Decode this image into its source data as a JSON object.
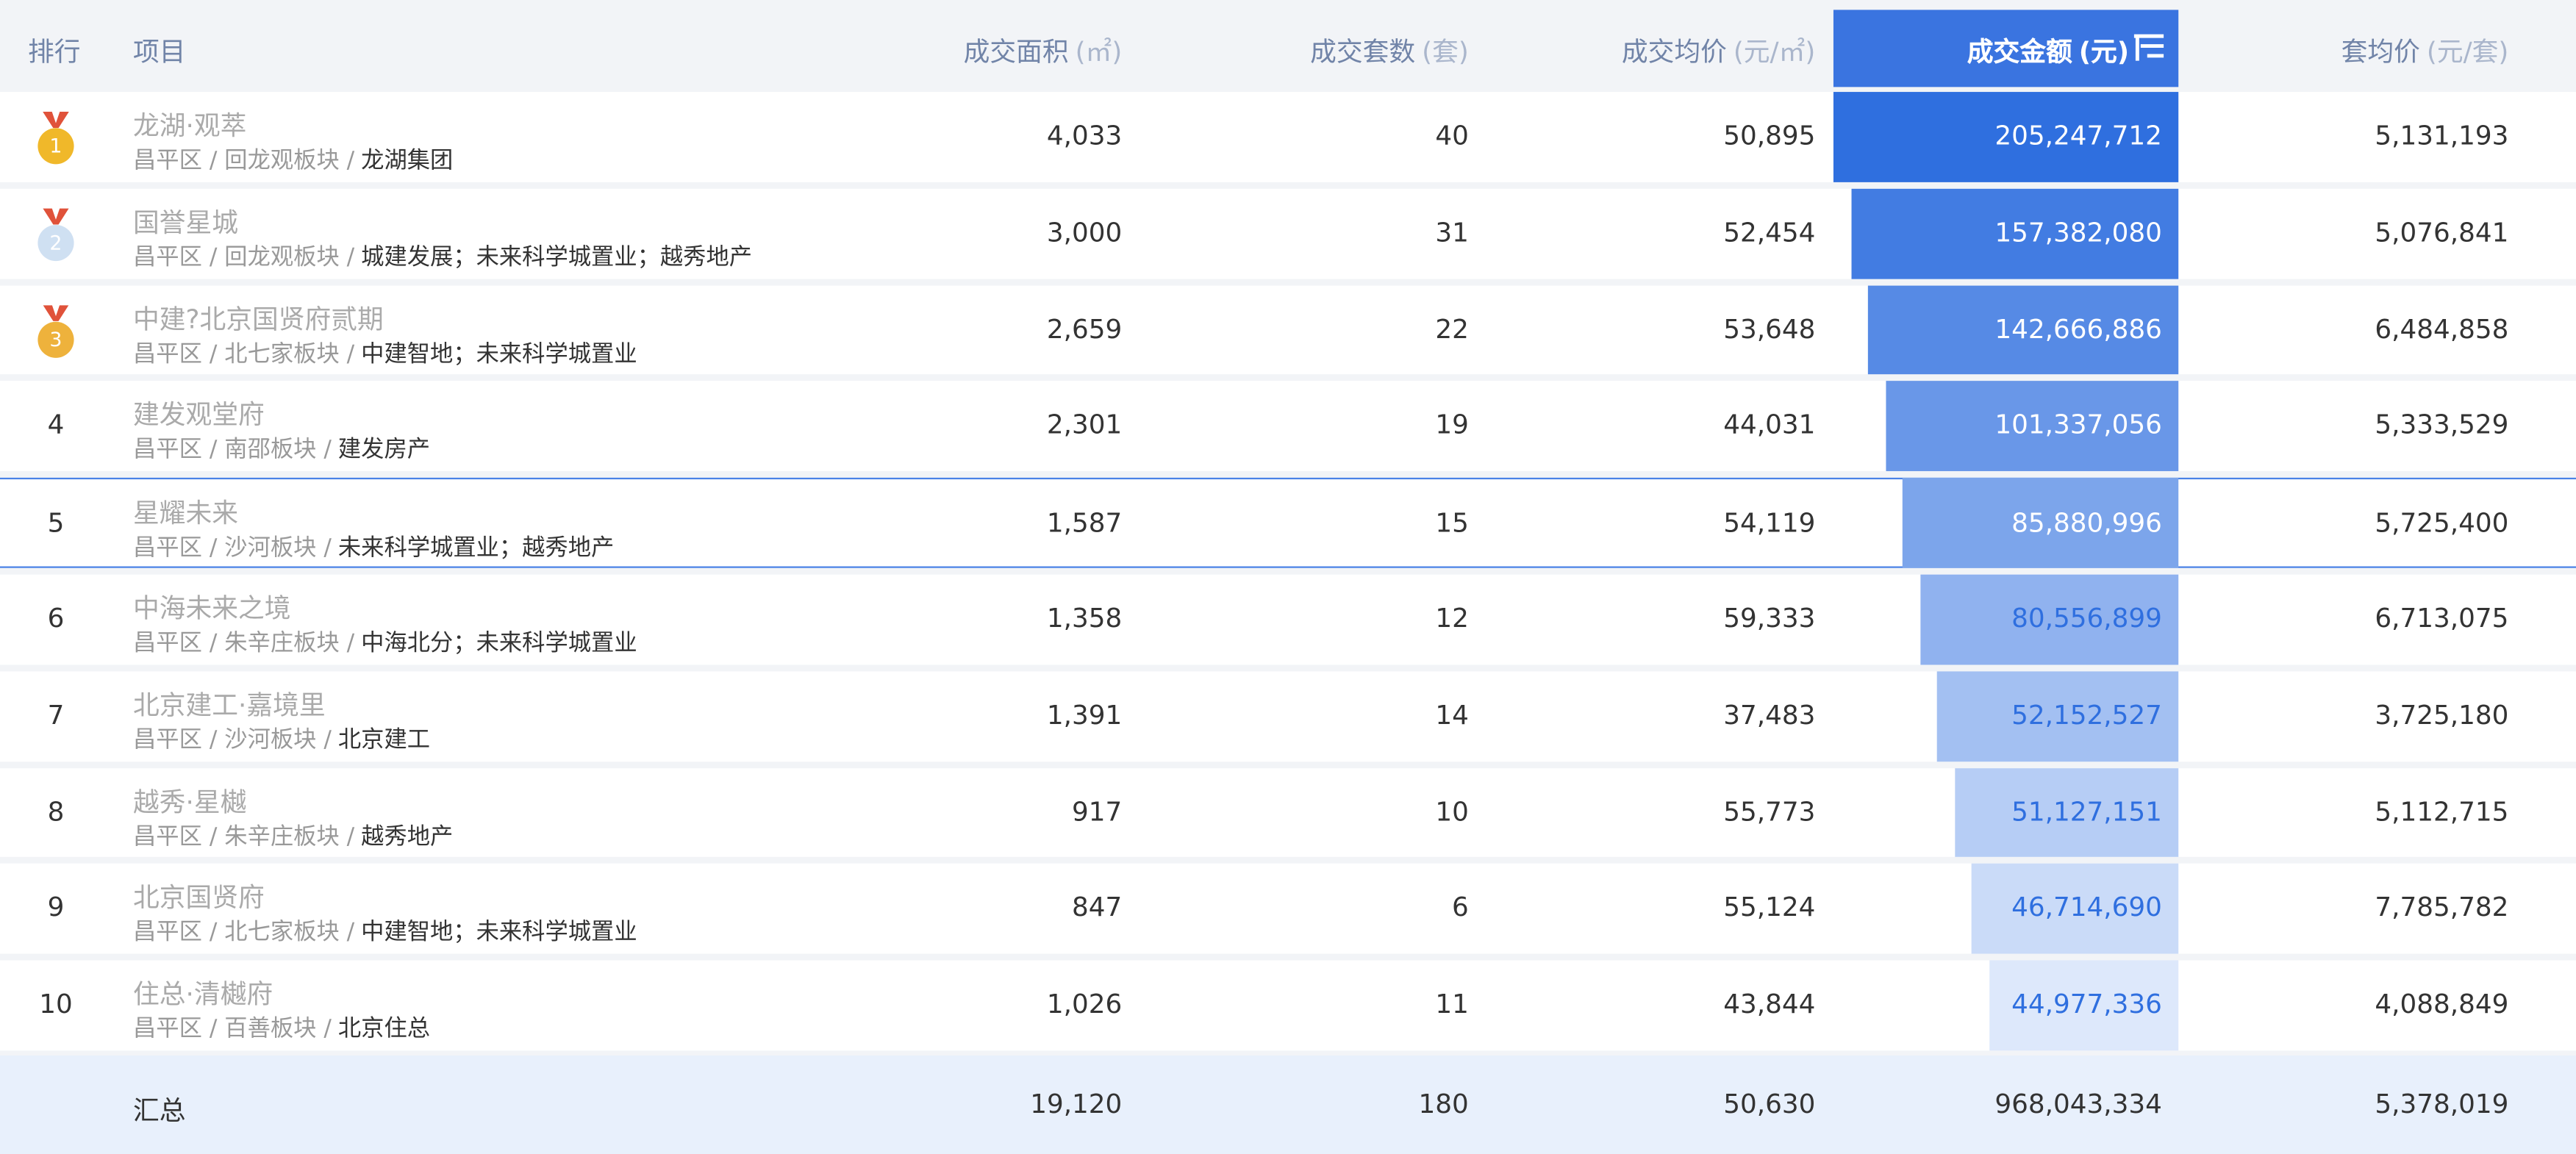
{
  "table": {
    "header": [
      {
        "label": "排行",
        "unit": null
      },
      {
        "label": "项目",
        "unit": null
      },
      {
        "label": "成交面积",
        "unit": "(㎡)"
      },
      {
        "label": "成交套数",
        "unit": "(套)"
      },
      {
        "label": "成交均价",
        "unit": "(元/㎡)"
      },
      {
        "label": "成交金额",
        "unit": "(元)"
      },
      {
        "label": "套均价",
        "unit": "(元/套)"
      }
    ],
    "rows": [
      {
        "rank": "1",
        "name": "龙湖·观萃",
        "location": "昌平区 / 回龙观板块 /",
        "developer": "龙湖集团",
        "area": "4,033",
        "units": "40",
        "avg_price": "50,895",
        "amount": "205,247,712",
        "unit_price": "5,131,193"
      },
      {
        "rank": "2",
        "name": "国誉星城",
        "location": "昌平区 / 回龙观板块 /",
        "developer": "城建发展；未来科学城置业；越秀地产",
        "area": "3,000",
        "units": "31",
        "avg_price": "52,454",
        "amount": "157,382,080",
        "unit_price": "5,076,841"
      },
      {
        "rank": "3",
        "name": "中建?北京国贤府贰期",
        "location": "昌平区 / 北七家板块 /",
        "developer": "中建智地；未来科学城置业",
        "area": "2,659",
        "units": "22",
        "avg_price": "53,648",
        "amount": "142,666,886",
        "unit_price": "6,484,858"
      },
      {
        "rank": "4",
        "name": "建发观堂府",
        "location": "昌平区 / 南邵板块 /",
        "developer": "建发房产",
        "area": "2,301",
        "units": "19",
        "avg_price": "44,031",
        "amount": "101,337,056",
        "unit_price": "5,333,529"
      },
      {
        "rank": "5",
        "name": "星耀未来",
        "location": "昌平区 / 沙河板块 /",
        "developer": "未来科学城置业；越秀地产",
        "area": "1,587",
        "units": "15",
        "avg_price": "54,119",
        "amount": "85,880,996",
        "unit_price": "5,725,400"
      },
      {
        "rank": "6",
        "name": "中海未来之境",
        "location": "昌平区 / 朱辛庄板块 /",
        "developer": "中海北分；未来科学城置业",
        "area": "1,358",
        "units": "12",
        "avg_price": "59,333",
        "amount": "80,556,899",
        "unit_price": "6,713,075"
      },
      {
        "rank": "7",
        "name": "北京建工·嘉境里",
        "location": "昌平区 / 沙河板块 /",
        "developer": "北京建工",
        "area": "1,391",
        "units": "14",
        "avg_price": "37,483",
        "amount": "52,152,527",
        "unit_price": "3,725,180"
      },
      {
        "rank": "8",
        "name": "越秀·星樾",
        "location": "昌平区 / 朱辛庄板块 /",
        "developer": "越秀地产",
        "area": "917",
        "units": "10",
        "avg_price": "55,773",
        "amount": "51,127,151",
        "unit_price": "5,112,715"
      },
      {
        "rank": "9",
        "name": "北京国贤府",
        "location": "昌平区 / 北七家板块 /",
        "developer": "中建智地；未来科学城置业",
        "area": "847",
        "units": "6",
        "avg_price": "55,124",
        "amount": "46,714,690",
        "unit_price": "7,785,782"
      },
      {
        "rank": "10",
        "name": "住总·清樾府",
        "location": "昌平区 / 百善板块 /",
        "developer": "北京住总",
        "area": "1,026",
        "units": "11",
        "avg_price": "43,844",
        "amount": "44,977,336",
        "unit_price": "4,088,849"
      }
    ],
    "total": {
      "label": "汇总",
      "area": "19,120",
      "units": "180",
      "avg_price": "50,630",
      "amount": "968,043,334",
      "unit_price": "5,378,019"
    }
  }
}
